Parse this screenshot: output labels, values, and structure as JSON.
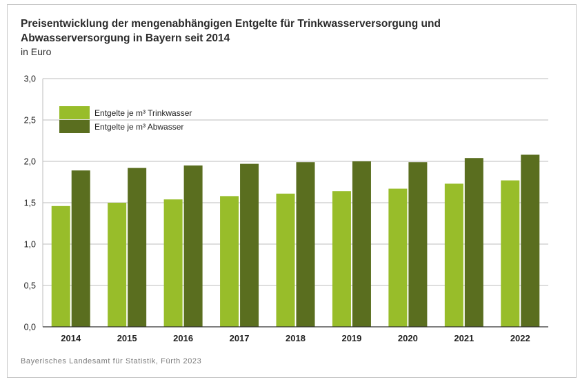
{
  "header": {
    "title_line1": "Preisentwicklung der mengenabhängigen Entgelte für Trinkwasserversorgung und",
    "title_line2": "Abwasserversorgung in Bayern seit 2014",
    "unit": "in Euro"
  },
  "footer": {
    "source": "Bayerisches Landesamt für Statistik, Fürth 2023"
  },
  "colors": {
    "trinkwasser": "#98bd2a",
    "abwasser": "#5a6e1f",
    "grid": "#bdbdbd",
    "axis": "#333333"
  },
  "chart_data": {
    "type": "bar",
    "categories": [
      "2014",
      "2015",
      "2016",
      "2017",
      "2018",
      "2019",
      "2020",
      "2021",
      "2022"
    ],
    "series": [
      {
        "name": "Entgelte je m³ Trinkwasser",
        "values": [
          1.46,
          1.5,
          1.54,
          1.58,
          1.61,
          1.64,
          1.67,
          1.73,
          1.77
        ]
      },
      {
        "name": "Entgelte je m³ Abwasser",
        "values": [
          1.89,
          1.92,
          1.95,
          1.97,
          1.99,
          2.0,
          1.99,
          2.04,
          2.08
        ]
      }
    ],
    "y_ticks": [
      "0,0",
      "0,5",
      "1,0",
      "1,5",
      "2,0",
      "2,5",
      "3,0"
    ],
    "ylim": [
      0,
      3.0
    ],
    "grid": true,
    "legend_position": "top-left"
  }
}
